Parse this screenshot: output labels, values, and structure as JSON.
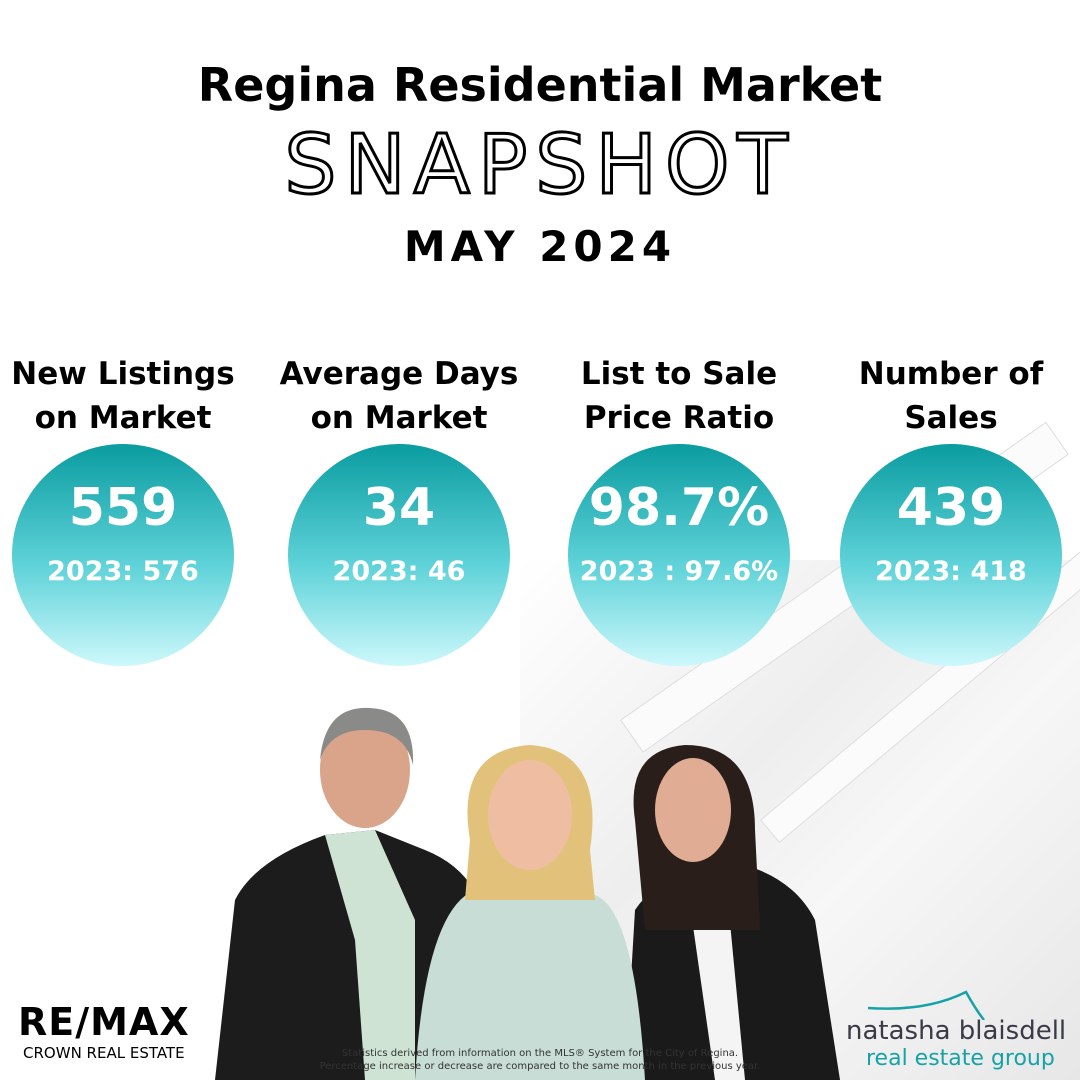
{
  "header": {
    "title": "Regina Residential Market",
    "subtitle": "SNAPSHOT",
    "month": "MAY 2024"
  },
  "stats": [
    {
      "label1": "New Listings",
      "label2": "on Market",
      "value": "559",
      "previous": "2023: 576"
    },
    {
      "label1": "Average Days",
      "label2": "on Market",
      "value": "34",
      "previous": "2023: 46"
    },
    {
      "label1": "List to Sale",
      "label2": "Price Ratio",
      "value": "98.7%",
      "previous": "2023 : 97.6%"
    },
    {
      "label1": "Number of",
      "label2": "Sales",
      "value": "439",
      "previous": "2023: 418"
    }
  ],
  "colors": {
    "circle_top": "#0a9ca0",
    "circle_bottom": "#cdf8fb",
    "brand_teal": "#17a3a6"
  },
  "footer": {
    "line1": "Statistics derived from information on the MLS® System for the City of Regina.",
    "line2": "Percentage increase or decrease are compared to the same month in the previous year."
  },
  "logos": {
    "remax_main": "RE/MAX",
    "remax_sub": "CROWN REAL ESTATE",
    "brand_name": "natasha blaisdell",
    "brand_sub": "real estate group"
  }
}
